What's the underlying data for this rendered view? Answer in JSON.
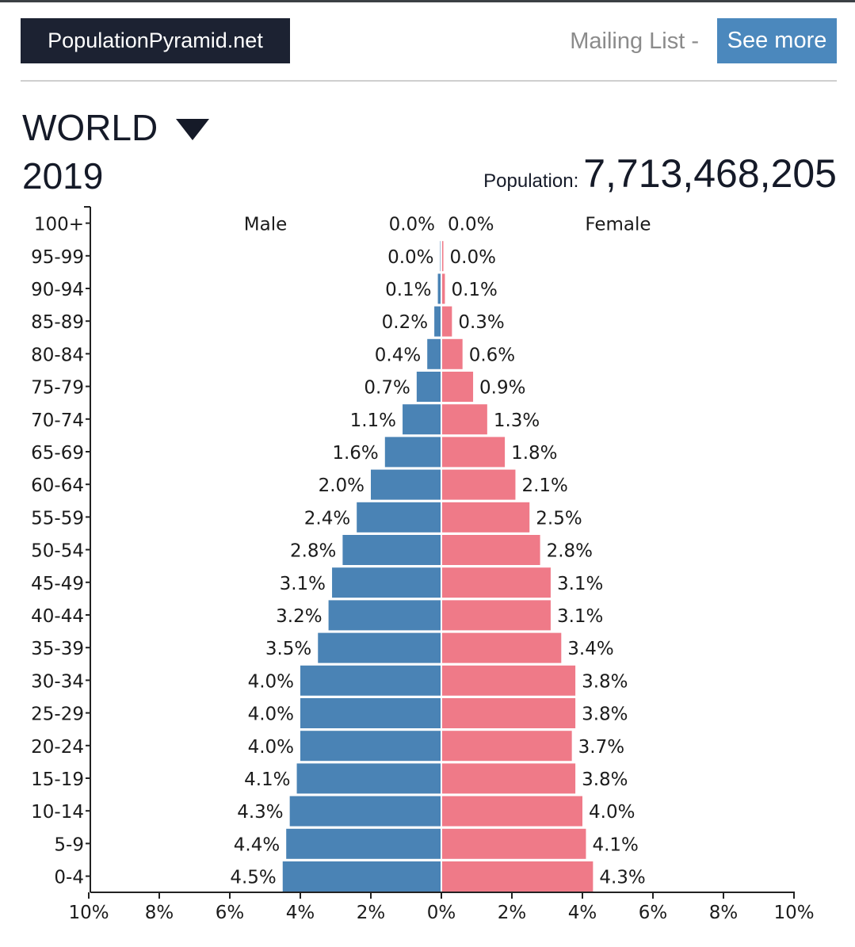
{
  "header": {
    "brand": "PopulationPyramid.net",
    "mailing_list": "Mailing List -",
    "see_more": "See more"
  },
  "region": "WORLD",
  "year": "2019",
  "population": {
    "label": "Population:",
    "value": "7,713,468,205"
  },
  "colors": {
    "male": "#4a83b5",
    "female": "#ef7a88",
    "brand_bg": "#1c2232",
    "button_bg": "#4b88bd"
  },
  "icons": {
    "region_dropdown": "caret-down-icon"
  },
  "chart_data": {
    "type": "bar",
    "orientation": "horizontal-pyramid",
    "categories": [
      "100+",
      "95-99",
      "90-94",
      "85-89",
      "80-84",
      "75-79",
      "70-74",
      "65-69",
      "60-64",
      "55-59",
      "50-54",
      "45-49",
      "40-44",
      "35-39",
      "30-34",
      "25-29",
      "20-24",
      "15-19",
      "10-14",
      "5-9",
      "0-4"
    ],
    "series": [
      {
        "name": "Male",
        "side": "left",
        "values": [
          0.0,
          0.0,
          0.1,
          0.2,
          0.4,
          0.7,
          1.1,
          1.6,
          2.0,
          2.4,
          2.8,
          3.1,
          3.2,
          3.5,
          4.0,
          4.0,
          4.0,
          4.1,
          4.3,
          4.4,
          4.5
        ],
        "labels": [
          "0.0%",
          "0.0%",
          "0.1%",
          "0.2%",
          "0.4%",
          "0.7%",
          "1.1%",
          "1.6%",
          "2.0%",
          "2.4%",
          "2.8%",
          "3.1%",
          "3.2%",
          "3.5%",
          "4.0%",
          "4.0%",
          "4.0%",
          "4.1%",
          "4.3%",
          "4.4%",
          "4.5%"
        ]
      },
      {
        "name": "Female",
        "side": "right",
        "values": [
          0.0,
          0.0,
          0.1,
          0.3,
          0.6,
          0.9,
          1.3,
          1.8,
          2.1,
          2.5,
          2.8,
          3.1,
          3.1,
          3.4,
          3.8,
          3.8,
          3.7,
          3.8,
          4.0,
          4.1,
          4.3
        ],
        "labels": [
          "0.0%",
          "0.0%",
          "0.1%",
          "0.3%",
          "0.6%",
          "0.9%",
          "1.3%",
          "1.8%",
          "2.1%",
          "2.5%",
          "2.8%",
          "3.1%",
          "3.1%",
          "3.4%",
          "3.8%",
          "3.8%",
          "3.7%",
          "3.8%",
          "4.0%",
          "4.1%",
          "4.3%"
        ]
      }
    ],
    "xlim": [
      -10,
      10
    ],
    "x_ticks": [
      "10%",
      "8%",
      "6%",
      "4%",
      "2%",
      "0%",
      "2%",
      "4%",
      "6%",
      "8%",
      "10%"
    ],
    "title": "",
    "xlabel": "",
    "ylabel": "",
    "grid": false
  }
}
